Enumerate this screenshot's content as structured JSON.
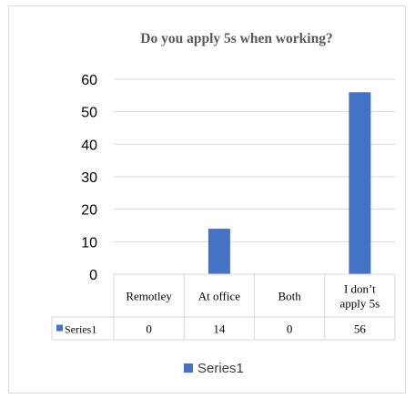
{
  "chart_data": {
    "type": "bar",
    "title": "Do you apply 5s when working?",
    "categories": [
      "Remotley",
      "At office",
      "Both",
      "I don’t apply 5s"
    ],
    "category_lines": [
      [
        "Remotley"
      ],
      [
        "At office"
      ],
      [
        "Both"
      ],
      [
        "I don’t",
        "apply 5s"
      ]
    ],
    "series": [
      {
        "name": "Series1",
        "values": [
          0,
          14,
          0,
          56
        ],
        "color": "#4472c4"
      }
    ],
    "ylim": [
      0,
      60
    ],
    "yticks": [
      0,
      10,
      20,
      30,
      40,
      50,
      60
    ],
    "grid": true,
    "legend": "bottom",
    "data_table": true
  }
}
